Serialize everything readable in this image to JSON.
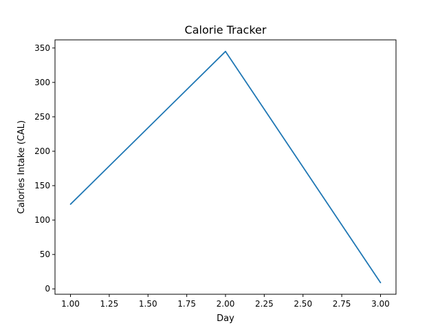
{
  "chart_data": {
    "type": "line",
    "title": "Calorie Tracker",
    "xlabel": "Day",
    "ylabel": "Calories Intake (CAL)",
    "x": [
      1.0,
      2.0,
      3.0
    ],
    "series": [
      {
        "values": [
          123,
          345,
          9
        ],
        "color": "#1f77b4"
      }
    ],
    "xlim": [
      0.9,
      3.1
    ],
    "ylim": [
      -7.8,
      361.8
    ],
    "xticks": [
      1.0,
      1.25,
      1.5,
      1.75,
      2.0,
      2.25,
      2.5,
      2.75,
      3.0
    ],
    "xtick_labels": [
      "1.00",
      "1.25",
      "1.50",
      "1.75",
      "2.00",
      "2.25",
      "2.50",
      "2.75",
      "3.00"
    ],
    "yticks": [
      0,
      50,
      100,
      150,
      200,
      250,
      300,
      350
    ],
    "ytick_labels": [
      "0",
      "50",
      "100",
      "150",
      "200",
      "250",
      "300",
      "350"
    ],
    "grid": false,
    "legend": false
  }
}
